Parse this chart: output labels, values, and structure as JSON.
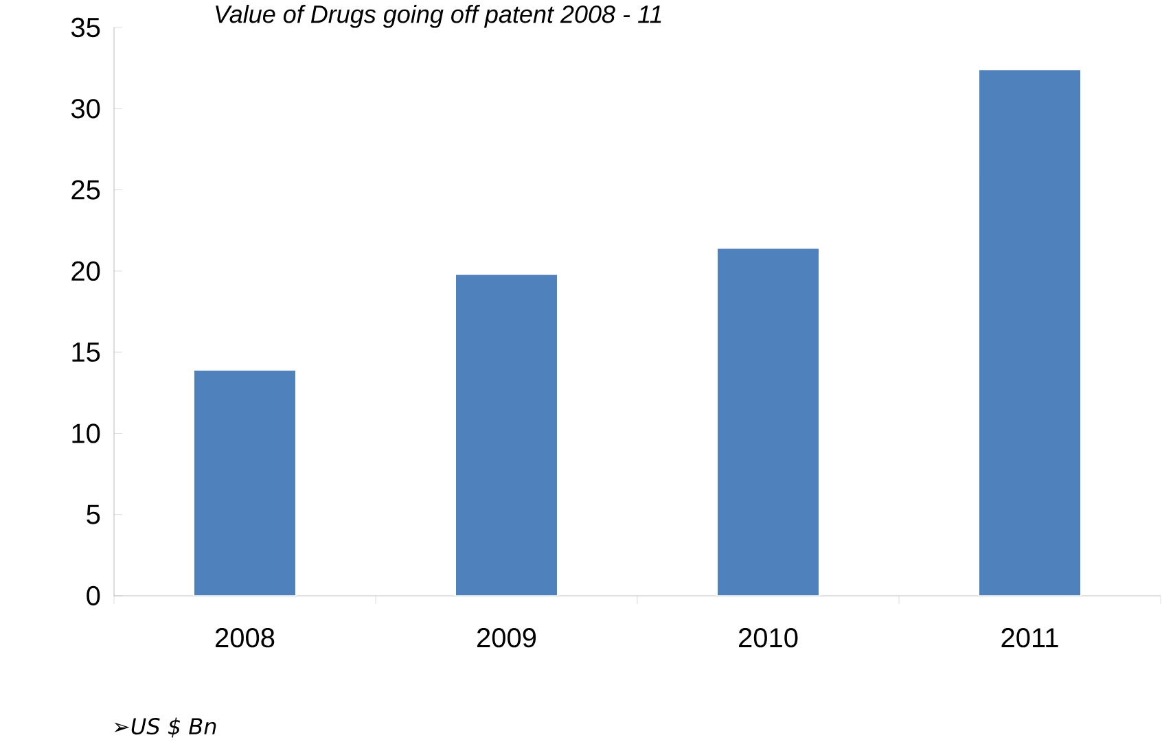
{
  "chart_data": {
    "type": "bar",
    "title": "*Value of Drugs going off patent 2008 - 11*",
    "categories": [
      "2008",
      "2009",
      "2010",
      "2011"
    ],
    "values": [
      13.9,
      19.8,
      21.4,
      32.4
    ],
    "color": "#4f81bd",
    "ylim": [
      0,
      35
    ],
    "yticks": [
      0,
      5,
      10,
      15,
      20,
      25,
      30,
      35
    ],
    "annotations": [
      "➢*US $ Bn*"
    ]
  }
}
